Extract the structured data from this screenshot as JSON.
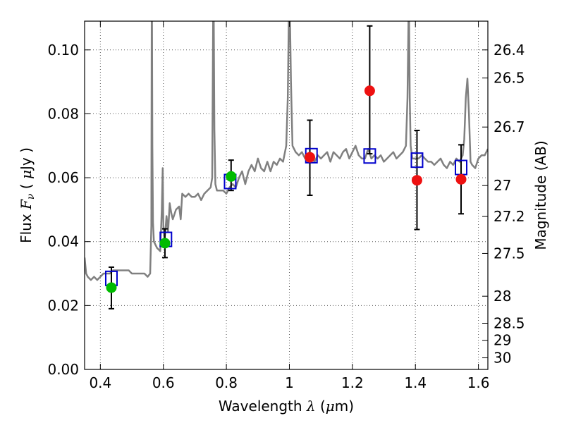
{
  "chart_data": {
    "type": "scatter",
    "xlabel": "Wavelength  λ (μm)",
    "ylabel": "Flux  F_ν  ( μJy )",
    "ylabel_parts": [
      "Flux ",
      "F",
      "ν",
      "  ( ",
      "μ",
      "Jy )"
    ],
    "xlabel_parts": [
      "Wavelength  ",
      "λ",
      " (",
      "μ",
      "m)"
    ],
    "y2label": "Magnitude (AB)",
    "xlim": [
      0.35,
      1.63
    ],
    "ylim": [
      0.0,
      0.109
    ],
    "grid": true,
    "x_ticks": [
      0.4,
      0.6,
      0.8,
      1.0,
      1.2,
      1.4,
      1.6
    ],
    "x_tick_labels": [
      "0.4",
      "0.6",
      "0.8",
      "1",
      "1.2",
      "1.4",
      "1.6"
    ],
    "y_ticks": [
      0.0,
      0.02,
      0.04,
      0.06,
      0.08,
      0.1
    ],
    "y_tick_labels": [
      "0.00",
      "0.02",
      "0.04",
      "0.06",
      "0.08",
      "0.10"
    ],
    "y2_ticks": [
      {
        "label": "26.4",
        "mag": 26.4
      },
      {
        "label": "26.5",
        "mag": 26.5
      },
      {
        "label": "26.7",
        "mag": 26.7
      },
      {
        "label": "27",
        "mag": 27.0
      },
      {
        "label": "27.2",
        "mag": 27.2
      },
      {
        "label": "27.5",
        "mag": 27.5
      },
      {
        "label": "28",
        "mag": 28.0
      },
      {
        "label": "28.5",
        "mag": 28.5
      },
      {
        "label": "29",
        "mag": 29.0
      },
      {
        "label": "30",
        "mag": 30.0
      }
    ],
    "colors": {
      "spectrum": "#808080",
      "model_box": "#0000cc",
      "green_point": "#00bb00",
      "red_point": "#ee1111",
      "errorbar": "#000000",
      "grid": "#555555"
    },
    "spectrum": {
      "x": [
        0.35,
        0.355,
        0.36,
        0.37,
        0.38,
        0.39,
        0.4,
        0.41,
        0.42,
        0.43,
        0.44,
        0.45,
        0.46,
        0.47,
        0.48,
        0.49,
        0.5,
        0.51,
        0.52,
        0.53,
        0.54,
        0.55,
        0.558,
        0.562,
        0.563,
        0.564,
        0.565,
        0.567,
        0.57,
        0.58,
        0.59,
        0.595,
        0.598,
        0.6,
        0.603,
        0.607,
        0.61,
        0.615,
        0.62,
        0.625,
        0.63,
        0.64,
        0.65,
        0.655,
        0.66,
        0.67,
        0.68,
        0.69,
        0.7,
        0.71,
        0.72,
        0.73,
        0.74,
        0.75,
        0.755,
        0.758,
        0.759,
        0.76,
        0.762,
        0.765,
        0.77,
        0.78,
        0.79,
        0.8,
        0.81,
        0.82,
        0.83,
        0.84,
        0.85,
        0.86,
        0.87,
        0.88,
        0.89,
        0.9,
        0.91,
        0.92,
        0.93,
        0.94,
        0.95,
        0.96,
        0.97,
        0.98,
        0.99,
        0.995,
        0.998,
        1.0,
        1.002,
        1.005,
        1.01,
        1.02,
        1.03,
        1.04,
        1.05,
        1.06,
        1.07,
        1.08,
        1.09,
        1.1,
        1.11,
        1.12,
        1.13,
        1.14,
        1.15,
        1.16,
        1.17,
        1.18,
        1.19,
        1.2,
        1.21,
        1.22,
        1.23,
        1.24,
        1.25,
        1.26,
        1.27,
        1.28,
        1.29,
        1.3,
        1.31,
        1.32,
        1.33,
        1.34,
        1.35,
        1.36,
        1.37,
        1.375,
        1.378,
        1.38,
        1.382,
        1.385,
        1.39,
        1.4,
        1.41,
        1.42,
        1.43,
        1.44,
        1.45,
        1.46,
        1.47,
        1.48,
        1.49,
        1.5,
        1.51,
        1.52,
        1.53,
        1.54,
        1.55,
        1.555,
        1.56,
        1.565,
        1.57,
        1.575,
        1.58,
        1.59,
        1.6,
        1.61,
        1.62,
        1.63
      ],
      "y": [
        0.035,
        0.03,
        0.029,
        0.028,
        0.029,
        0.028,
        0.029,
        0.03,
        0.03,
        0.03,
        0.031,
        0.031,
        0.031,
        0.031,
        0.031,
        0.031,
        0.03,
        0.03,
        0.03,
        0.03,
        0.03,
        0.029,
        0.03,
        0.045,
        0.109,
        0.109,
        0.07,
        0.046,
        0.04,
        0.038,
        0.037,
        0.05,
        0.063,
        0.045,
        0.04,
        0.044,
        0.048,
        0.043,
        0.052,
        0.049,
        0.047,
        0.05,
        0.051,
        0.047,
        0.055,
        0.054,
        0.055,
        0.054,
        0.054,
        0.055,
        0.053,
        0.055,
        0.056,
        0.057,
        0.06,
        0.109,
        0.109,
        0.109,
        0.075,
        0.058,
        0.056,
        0.056,
        0.056,
        0.055,
        0.057,
        0.058,
        0.057,
        0.06,
        0.062,
        0.058,
        0.062,
        0.064,
        0.062,
        0.066,
        0.063,
        0.062,
        0.065,
        0.062,
        0.065,
        0.064,
        0.066,
        0.065,
        0.07,
        0.085,
        0.109,
        0.109,
        0.109,
        0.09,
        0.07,
        0.068,
        0.067,
        0.068,
        0.066,
        0.067,
        0.066,
        0.065,
        0.067,
        0.066,
        0.067,
        0.068,
        0.065,
        0.068,
        0.067,
        0.066,
        0.068,
        0.069,
        0.066,
        0.068,
        0.07,
        0.067,
        0.066,
        0.066,
        0.069,
        0.066,
        0.067,
        0.066,
        0.067,
        0.065,
        0.066,
        0.067,
        0.068,
        0.066,
        0.067,
        0.068,
        0.07,
        0.085,
        0.109,
        0.109,
        0.085,
        0.07,
        0.066,
        0.066,
        0.066,
        0.067,
        0.066,
        0.065,
        0.065,
        0.064,
        0.065,
        0.066,
        0.064,
        0.063,
        0.065,
        0.064,
        0.066,
        0.065,
        0.067,
        0.072,
        0.085,
        0.091,
        0.08,
        0.065,
        0.064,
        0.063,
        0.066,
        0.067,
        0.067,
        0.069
      ]
    },
    "model_boxes": [
      {
        "x": 0.435,
        "y": 0.0285
      },
      {
        "x": 0.608,
        "y": 0.0407
      },
      {
        "x": 0.812,
        "y": 0.0588
      },
      {
        "x": 1.07,
        "y": 0.0669
      },
      {
        "x": 1.255,
        "y": 0.0668
      },
      {
        "x": 1.405,
        "y": 0.0655
      },
      {
        "x": 1.545,
        "y": 0.0632
      }
    ],
    "green_points": [
      {
        "x": 0.435,
        "y": 0.0256,
        "yerr_low": 0.019,
        "yerr_high": 0.032
      },
      {
        "x": 0.605,
        "y": 0.0395,
        "yerr_low": 0.035,
        "yerr_high": 0.044
      },
      {
        "x": 0.815,
        "y": 0.0604,
        "yerr_low": 0.056,
        "yerr_high": 0.0655
      }
    ],
    "red_points": [
      {
        "x": 1.065,
        "y": 0.0664,
        "yerr_low": 0.0545,
        "yerr_high": 0.078
      },
      {
        "x": 1.255,
        "y": 0.0872,
        "yerr_low": 0.0675,
        "yerr_high": 0.1075
      },
      {
        "x": 1.405,
        "y": 0.0592,
        "yerr_low": 0.0438,
        "yerr_high": 0.0748
      },
      {
        "x": 1.545,
        "y": 0.0595,
        "yerr_low": 0.0487,
        "yerr_high": 0.0703
      }
    ]
  }
}
